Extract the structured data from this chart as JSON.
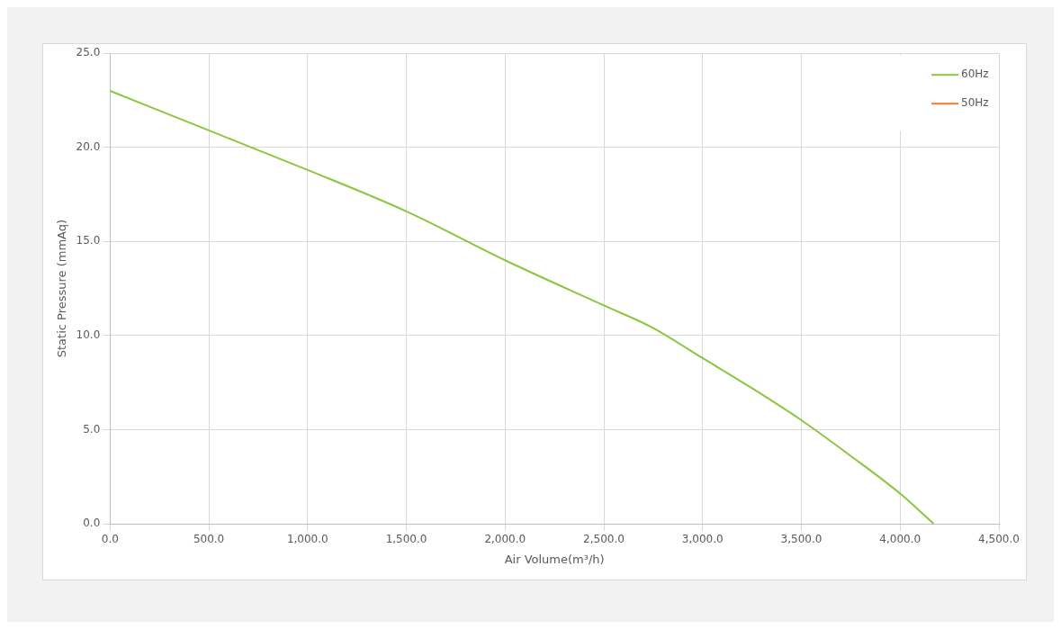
{
  "chart_data": {
    "type": "line",
    "xlabel": "Air Volume(m³/h)",
    "ylabel": "Static Pressure (mmAq)",
    "xlim": [
      0,
      4500
    ],
    "xticks": [
      {
        "value": 0,
        "label": "0.0"
      },
      {
        "value": 500,
        "label": "500.0"
      },
      {
        "value": 1000,
        "label": "1,000.0"
      },
      {
        "value": 1500,
        "label": "1,500.0"
      },
      {
        "value": 2000,
        "label": "2,000.0"
      },
      {
        "value": 2500,
        "label": "2,500.0"
      },
      {
        "value": 3000,
        "label": "3,000.0"
      },
      {
        "value": 3500,
        "label": "3,500.0"
      },
      {
        "value": 4000,
        "label": "4,000.0"
      },
      {
        "value": 4500,
        "label": "4,500.0"
      }
    ],
    "ylim": [
      0,
      25
    ],
    "yticks": [
      {
        "value": 0,
        "label": "0.0"
      },
      {
        "value": 5,
        "label": "5.0"
      },
      {
        "value": 10,
        "label": "10.0"
      },
      {
        "value": 15,
        "label": "15.0"
      },
      {
        "value": 20,
        "label": "20.0"
      },
      {
        "value": 25,
        "label": "25.0"
      }
    ],
    "grid": true,
    "legend": "top right",
    "marker": "none",
    "line_style": "solid",
    "series": [
      {
        "name": "60Hz",
        "color": "#8cc63f",
        "x": [
          0,
          500,
          1000,
          1500,
          2000,
          2500,
          2750,
          3000,
          3250,
          3500,
          3750,
          4000,
          4170
        ],
        "values": [
          23,
          20.9,
          18.8,
          16.6,
          14.0,
          11.6,
          10.4,
          8.8,
          7.2,
          5.5,
          3.6,
          1.6,
          0
        ]
      },
      {
        "name": "50Hz",
        "color": "#ed7d31"
      }
    ]
  }
}
